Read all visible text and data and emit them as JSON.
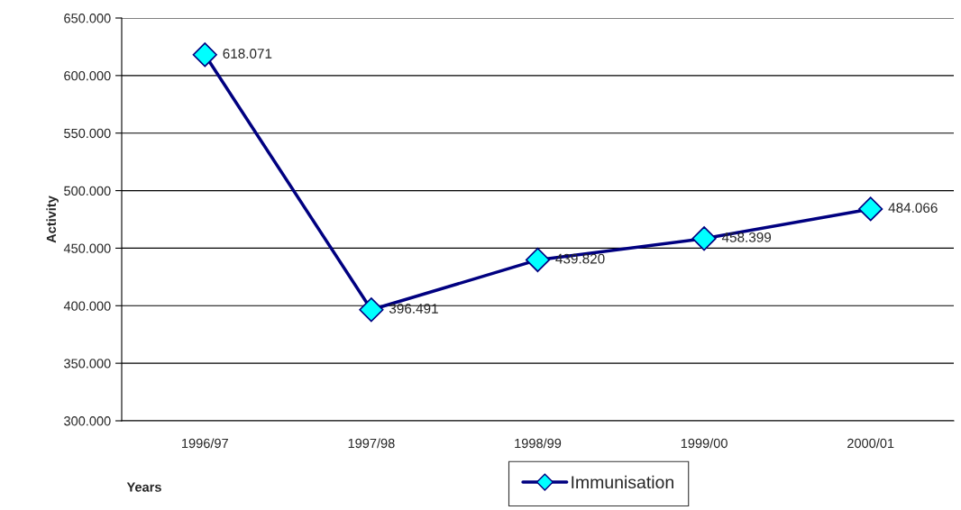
{
  "chart_data": {
    "type": "line",
    "xlabel": "Years",
    "ylabel": "Activity",
    "categories": [
      "1996/97",
      "1997/98",
      "1998/99",
      "1999/00",
      "2000/01"
    ],
    "series": [
      {
        "name": "Immunisation",
        "color": "#000080",
        "values": [
          618071,
          396491,
          439820,
          458399,
          484066
        ],
        "value_labels": [
          "618.071",
          "396.491",
          "439.820",
          "458.399",
          "484.066"
        ]
      }
    ],
    "ylim": [
      300000,
      650000
    ],
    "yticks": [
      {
        "value": 300000,
        "label": "300.000"
      },
      {
        "value": 350000,
        "label": "350.000"
      },
      {
        "value": 400000,
        "label": "400.000"
      },
      {
        "value": 450000,
        "label": "450.000"
      },
      {
        "value": 500000,
        "label": "500.000"
      },
      {
        "value": 550000,
        "label": "550.000"
      },
      {
        "value": 600000,
        "label": "600.000"
      },
      {
        "value": 650000,
        "label": "650.000"
      }
    ],
    "grid": "y",
    "legend": "bottom",
    "marker": "diamond",
    "line_style": "solid"
  }
}
